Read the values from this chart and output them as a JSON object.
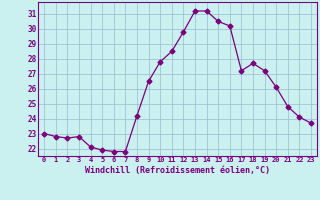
{
  "x": [
    0,
    1,
    2,
    3,
    4,
    5,
    6,
    7,
    8,
    9,
    10,
    11,
    12,
    13,
    14,
    15,
    16,
    17,
    18,
    19,
    20,
    21,
    22,
    23
  ],
  "y": [
    23.0,
    22.8,
    22.7,
    22.8,
    22.1,
    21.9,
    21.8,
    21.8,
    24.2,
    26.5,
    27.8,
    28.5,
    29.8,
    31.2,
    31.2,
    30.5,
    30.2,
    27.2,
    27.7,
    27.2,
    26.1,
    24.8,
    24.1,
    23.7
  ],
  "line_color": "#7b007b",
  "marker": "D",
  "marker_size": 2.5,
  "bg_color": "#caf0f0",
  "grid_color": "#99bbcc",
  "xlabel": "Windchill (Refroidissement éolien,°C)",
  "xlabel_color": "#7b007b",
  "ylabel_ticks": [
    22,
    23,
    24,
    25,
    26,
    27,
    28,
    29,
    30,
    31
  ],
  "xtick_labels": [
    "0",
    "1",
    "2",
    "3",
    "4",
    "5",
    "6",
    "7",
    "8",
    "9",
    "10",
    "11",
    "12",
    "13",
    "14",
    "15",
    "16",
    "17",
    "18",
    "19",
    "20",
    "21",
    "22",
    "23"
  ],
  "ylim": [
    21.5,
    31.8
  ],
  "xlim": [
    -0.5,
    23.5
  ]
}
